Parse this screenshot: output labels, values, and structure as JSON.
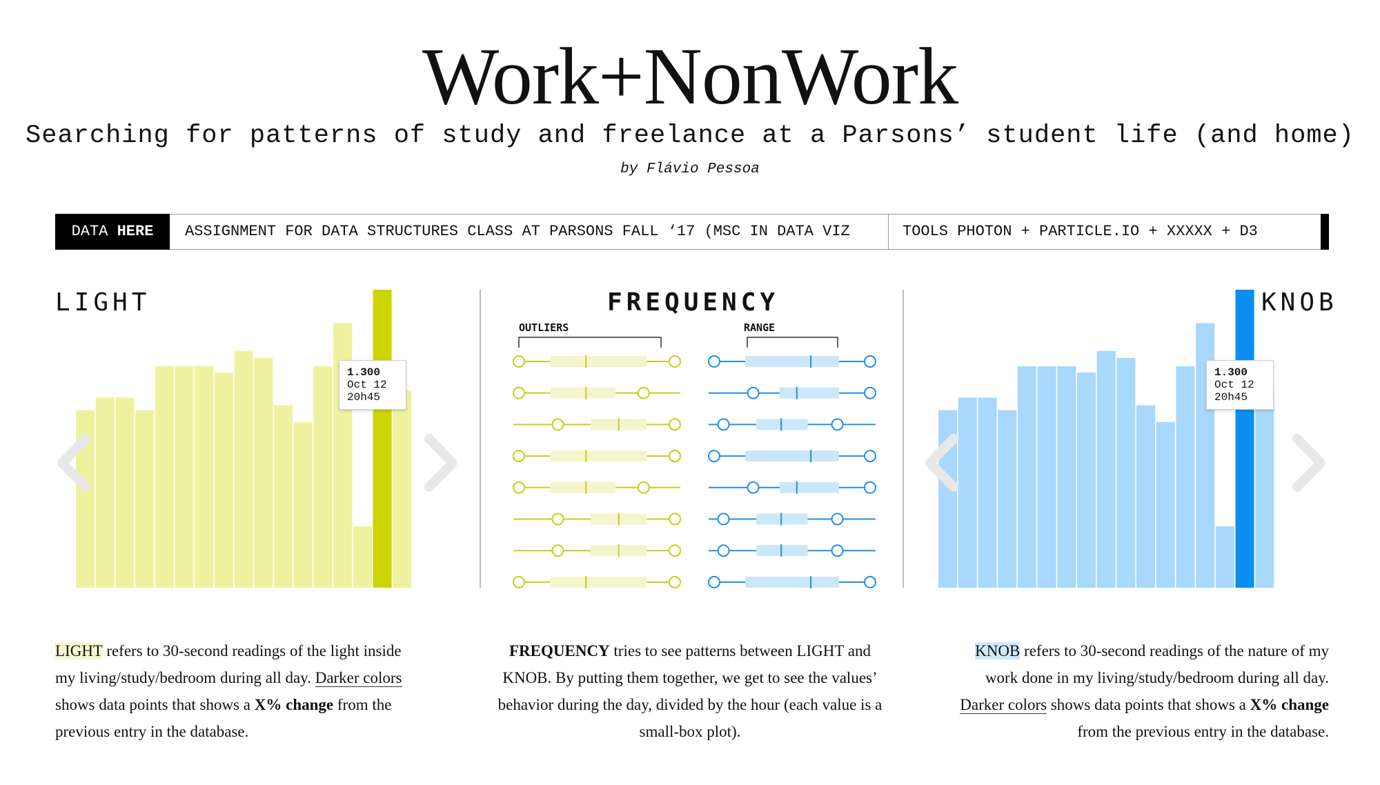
{
  "header": {
    "title": "Work+NonWork",
    "subtitle": "Searching for patterns of study and freelance at a Parsons’ student life (and home)",
    "byline": "by Flávio Pessoa"
  },
  "infobar": {
    "data_prefix": "DATA",
    "data_bold": "HERE",
    "assignment": "ASSIGNMENT FOR DATA STRUCTURES CLASS AT PARSONS FALL ‘17 (MSC IN DATA VIZ",
    "tools": "TOOLS PHOTON + PARTICLE.IO + XXXXX + D3"
  },
  "colors": {
    "light_bar": "#eef29f",
    "light_highlight": "#ccd500",
    "light_line": "#c7cf10",
    "light_box": "#f4f5cc",
    "knob_bar": "#a8d8fb",
    "knob_highlight": "#0a8ff0",
    "knob_line": "#1d8fe6",
    "knob_box": "#cde7fa",
    "arrow": "#e8e8e8"
  },
  "chart_data": [
    {
      "type": "bar",
      "title": "LIGHT",
      "values": [
        255,
        273,
        273,
        255,
        318,
        318,
        318,
        309,
        340,
        330,
        262,
        238,
        318,
        380,
        88,
        428,
        283
      ],
      "highlight_index": 15,
      "ylim": [
        0,
        428
      ],
      "tooltip": {
        "value": "1.300",
        "date": "Oct 12",
        "time": "20h45"
      }
    },
    {
      "type": "box",
      "title": "FREQUENCY",
      "groups": [
        {
          "name": "OUTLIERS",
          "color": "light",
          "rows": [
            {
              "whisker": [
                0,
                1
              ],
              "box": [
                0.2,
                0.82
              ],
              "median": 0.43
            },
            {
              "whisker": [
                0,
                0.8
              ],
              "box": [
                0.2,
                0.62
              ],
              "median": 0.43
            },
            {
              "whisker": [
                0.25,
                1
              ],
              "box": [
                0.46,
                0.82
              ],
              "median": 0.64
            },
            {
              "whisker": [
                0,
                1
              ],
              "box": [
                0.2,
                0.82
              ],
              "median": 0.43
            },
            {
              "whisker": [
                0,
                0.8
              ],
              "box": [
                0.2,
                0.62
              ],
              "median": 0.43
            },
            {
              "whisker": [
                0.25,
                1
              ],
              "box": [
                0.46,
                0.82
              ],
              "median": 0.64
            },
            {
              "whisker": [
                0.25,
                1
              ],
              "box": [
                0.46,
                0.82
              ],
              "median": 0.64
            },
            {
              "whisker": [
                0,
                1
              ],
              "box": [
                0.2,
                0.82
              ],
              "median": 0.43
            }
          ]
        },
        {
          "name": "RANGE",
          "color": "knob",
          "rows": [
            {
              "whisker": [
                0,
                1
              ],
              "box": [
                0.2,
                0.8
              ],
              "median": 0.62
            },
            {
              "whisker": [
                0.25,
                1
              ],
              "box": [
                0.42,
                0.8
              ],
              "median": 0.53
            },
            {
              "whisker": [
                0.06,
                0.79
              ],
              "box": [
                0.27,
                0.6
              ],
              "median": 0.43
            },
            {
              "whisker": [
                0,
                1
              ],
              "box": [
                0.2,
                0.8
              ],
              "median": 0.62
            },
            {
              "whisker": [
                0.25,
                1
              ],
              "box": [
                0.42,
                0.8
              ],
              "median": 0.53
            },
            {
              "whisker": [
                0.06,
                0.79
              ],
              "box": [
                0.27,
                0.6
              ],
              "median": 0.43
            },
            {
              "whisker": [
                0.06,
                0.79
              ],
              "box": [
                0.27,
                0.6
              ],
              "median": 0.43
            },
            {
              "whisker": [
                0,
                1
              ],
              "box": [
                0.2,
                0.8
              ],
              "median": 0.62
            }
          ]
        }
      ]
    },
    {
      "type": "bar",
      "title": "KNOB",
      "values": [
        255,
        273,
        273,
        255,
        318,
        318,
        318,
        309,
        340,
        330,
        262,
        238,
        318,
        380,
        88,
        428,
        283
      ],
      "highlight_index": 15,
      "ylim": [
        0,
        428
      ],
      "tooltip": {
        "value": "1.300",
        "date": "Oct 12",
        "time": "20h45"
      }
    }
  ],
  "descriptions": {
    "light": {
      "term": "LIGHT",
      "text1": " refers to 30-second readings of the light inside my living/study/bedroom during all day. ",
      "underline": "Darker colors",
      "text2": " shows data points that shows a ",
      "bold": "X% change",
      "text3": " from the previous entry in the database."
    },
    "frequency": {
      "term": "FREQUENCY",
      "text1": " tries to see patterns between LIGHT and KNOB. By putting them together, we get to see the values’ behavior during the day, divided by the hour (each value is a small-box plot)."
    },
    "knob": {
      "term": "KNOB",
      "text1": " refers to 30-second readings of the nature of my work done in my living/study/bedroom during all day. ",
      "underline": "Darker colors",
      "text2": " shows data points that shows a ",
      "bold": "X% change",
      "text3": " from the previous entry in the database."
    }
  }
}
